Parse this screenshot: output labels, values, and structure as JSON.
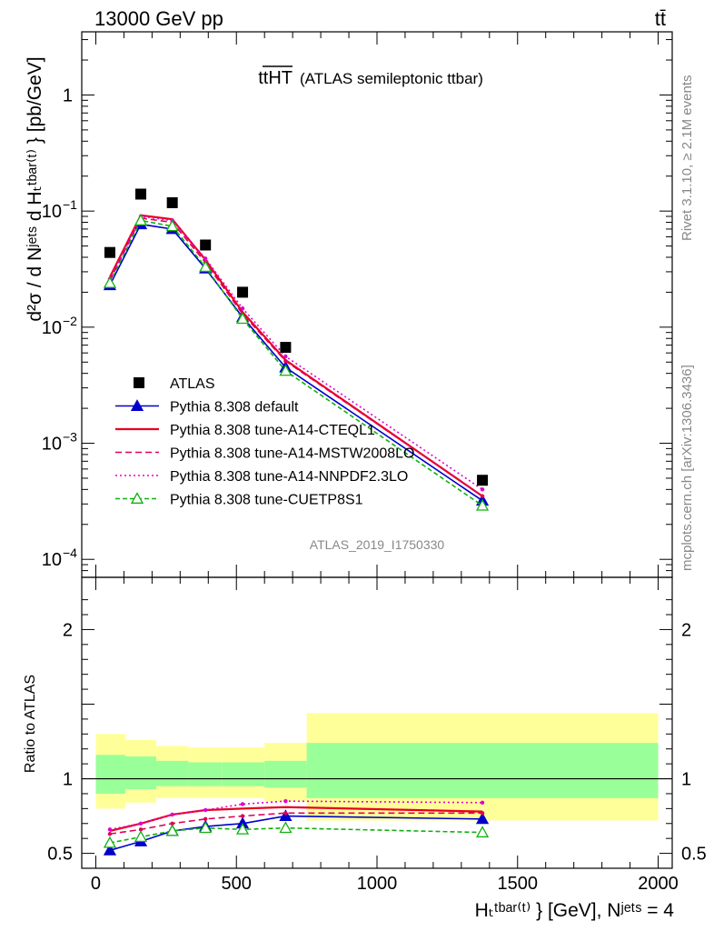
{
  "header": {
    "left": "13000 GeV pp",
    "right": "tt̄"
  },
  "side": {
    "top": "Rivet 3.1.10, ≥ 2.1M events",
    "bottom": "mcplots.cern.ch [arXiv:1306.3436]"
  },
  "watermark": "ATLAS_2019_I1750330",
  "plot_title": {
    "main": "ttHT",
    "sub": "(ATLAS semileptonic ttbar)"
  },
  "ylabel_main": "d²σ / d Nʲᵉᵗˢ d Hₜᵗᵇᵃʳ⁽ᵗ⁾ } [pb/GeV]",
  "ylabel_ratio": "Ratio to ATLAS",
  "xlabel": "Hₜᵗᵇᵃʳ⁽ᵗ⁾ } [GeV], Nʲᵉᵗˢ = 4",
  "colors": {
    "data": "#000000",
    "default": "#0000cc",
    "a14cteq": "#e8001c",
    "a14mstw": "#e0005a",
    "a14nnpdf": "#e000d0",
    "cuetp8s1": "#10b010",
    "band_inner": "#99ff99",
    "band_outer": "#ffff99"
  },
  "chart_data": {
    "type": "line",
    "x_axis": {
      "range": [
        -50,
        2050
      ],
      "ticks": [
        0,
        500,
        1000,
        1500,
        2000
      ],
      "tick_labels": [
        "0",
        "500",
        "1000",
        "1500",
        "2000"
      ]
    },
    "main": {
      "yscale": "log",
      "ylim": [
        7e-05,
        3.5
      ],
      "y_ticks": [
        1,
        0.1,
        0.01,
        0.001,
        0.0001
      ],
      "y_tick_labels": [
        {
          "base": "1",
          "exp": ""
        },
        {
          "base": "10",
          "exp": "−1"
        },
        {
          "base": "10",
          "exp": "−2"
        },
        {
          "base": "10",
          "exp": "−3"
        },
        {
          "base": "10",
          "exp": "−4"
        }
      ],
      "data": {
        "name": "ATLAS",
        "x": [
          50,
          160,
          272,
          390,
          522,
          675,
          1375
        ],
        "y": [
          0.044,
          0.14,
          0.118,
          0.051,
          0.02,
          0.0067,
          0.00048
        ]
      },
      "series": [
        {
          "key": "default",
          "name": "Pythia 8.308 default",
          "x": [
            50,
            160,
            272,
            390,
            522,
            675,
            1375
          ],
          "y": [
            0.023,
            0.077,
            0.07,
            0.032,
            0.0122,
            0.0045,
            0.00032
          ],
          "marker": "triangle-filled",
          "dash": ""
        },
        {
          "key": "a14cteq",
          "name": "Pythia 8.308 tune-A14-CTEQL1",
          "x": [
            50,
            160,
            272,
            390,
            522,
            675,
            1375
          ],
          "y": [
            0.027,
            0.092,
            0.085,
            0.038,
            0.0135,
            0.0052,
            0.00035
          ],
          "marker": "none",
          "dash": ""
        },
        {
          "key": "a14mstw",
          "name": "Pythia 8.308 tune-A14-MSTW2008LO",
          "x": [
            50,
            160,
            272,
            390,
            522,
            675,
            1375
          ],
          "y": [
            0.025,
            0.087,
            0.08,
            0.036,
            0.013,
            0.0051,
            0.00035
          ],
          "marker": "dot",
          "dash": "7,4"
        },
        {
          "key": "a14nnpdf",
          "name": "Pythia 8.308 tune-A14-NNPDF2.3LO",
          "x": [
            50,
            160,
            272,
            390,
            522,
            675,
            1375
          ],
          "y": [
            0.026,
            0.09,
            0.083,
            0.039,
            0.0145,
            0.0056,
            0.0004
          ],
          "marker": "dot",
          "dash": "2,3"
        },
        {
          "key": "cuetp8s1",
          "name": "Pythia 8.308 tune-CUETP8S1",
          "x": [
            50,
            160,
            272,
            390,
            522,
            675,
            1375
          ],
          "y": [
            0.024,
            0.083,
            0.074,
            0.033,
            0.0118,
            0.0042,
            0.00029
          ],
          "marker": "triangle-open",
          "dash": "5,3"
        }
      ]
    },
    "ratio": {
      "ylim": [
        0.4,
        2.35
      ],
      "y_ticks": [
        0.5,
        1,
        2
      ],
      "y_tick_labels": [
        "0.5",
        "1",
        "2"
      ],
      "bands": [
        {
          "x0": 0,
          "x1": 105,
          "inner": [
            0.9,
            1.16
          ],
          "outer": [
            0.8,
            1.3
          ]
        },
        {
          "x0": 105,
          "x1": 215,
          "inner": [
            0.93,
            1.15
          ],
          "outer": [
            0.84,
            1.26
          ]
        },
        {
          "x0": 215,
          "x1": 330,
          "inner": [
            0.95,
            1.12
          ],
          "outer": [
            0.87,
            1.22
          ]
        },
        {
          "x0": 330,
          "x1": 450,
          "inner": [
            0.95,
            1.11
          ],
          "outer": [
            0.87,
            1.21
          ]
        },
        {
          "x0": 450,
          "x1": 600,
          "inner": [
            0.95,
            1.11
          ],
          "outer": [
            0.87,
            1.21
          ]
        },
        {
          "x0": 600,
          "x1": 750,
          "inner": [
            0.94,
            1.12
          ],
          "outer": [
            0.85,
            1.24
          ]
        },
        {
          "x0": 750,
          "x1": 2000,
          "inner": [
            0.87,
            1.24
          ],
          "outer": [
            0.72,
            1.44
          ]
        }
      ],
      "series": [
        {
          "key": "default",
          "x": [
            50,
            160,
            272,
            390,
            522,
            675,
            1375
          ],
          "y": [
            0.52,
            0.58,
            0.65,
            0.68,
            0.7,
            0.75,
            0.73
          ],
          "marker": "triangle-filled",
          "dash": ""
        },
        {
          "key": "a14cteq",
          "x": [
            50,
            160,
            272,
            390,
            522,
            675,
            1375
          ],
          "y": [
            0.65,
            0.7,
            0.76,
            0.79,
            0.8,
            0.81,
            0.78
          ],
          "marker": "none",
          "dash": ""
        },
        {
          "key": "a14mstw",
          "x": [
            50,
            160,
            272,
            390,
            522,
            675,
            1375
          ],
          "y": [
            0.63,
            0.66,
            0.7,
            0.73,
            0.75,
            0.77,
            0.77
          ],
          "marker": "dot",
          "dash": "7,4"
        },
        {
          "key": "a14nnpdf",
          "x": [
            50,
            160,
            272,
            390,
            522,
            675,
            1375
          ],
          "y": [
            0.66,
            0.7,
            0.76,
            0.79,
            0.83,
            0.85,
            0.84
          ],
          "marker": "dot",
          "dash": "2,3"
        },
        {
          "key": "cuetp8s1",
          "x": [
            50,
            160,
            272,
            390,
            522,
            675,
            1375
          ],
          "y": [
            0.57,
            0.61,
            0.65,
            0.67,
            0.66,
            0.67,
            0.64
          ],
          "marker": "triangle-open",
          "dash": "5,3"
        }
      ]
    },
    "legend": {
      "placement": "lower-left"
    }
  }
}
